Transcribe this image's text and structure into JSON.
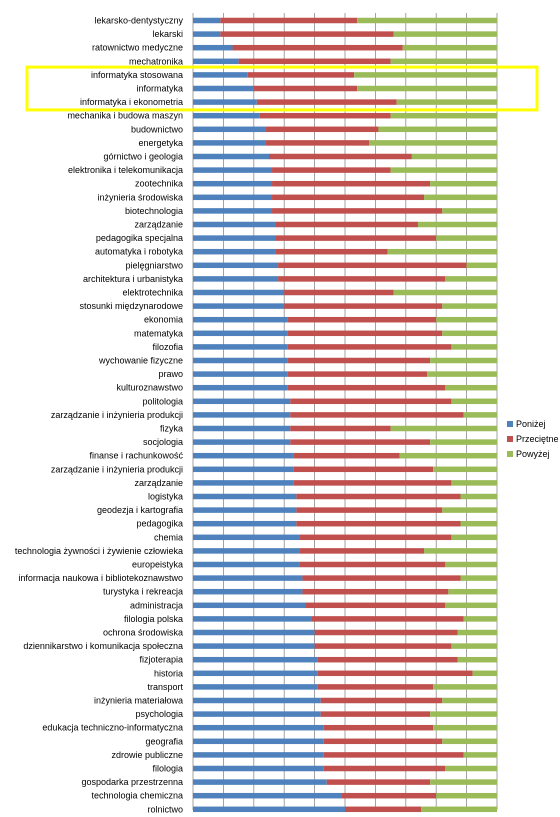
{
  "chart_data": {
    "type": "bar",
    "orientation": "horizontal",
    "stacked": "percent",
    "grid": true,
    "legend_position": "right",
    "xlim": [
      0,
      1
    ],
    "categories": [
      "lekarsko-dentystyczny",
      "lekarski",
      "ratownictwo medyczne",
      "mechatronika",
      "informatyka stosowana",
      "informatyka",
      "informatyka i ekonometria",
      "mechanika i budowa maszyn",
      "budownictwo",
      "energetyka",
      "górnictwo i geologia",
      "elektronika i telekomunikacja",
      "zootechnika",
      "inżynieria środowiska",
      "biotechnologia",
      "zarządzanie",
      "pedagogika specjalna",
      "automatyka i robotyka",
      "pielęgniarstwo",
      "architektura i urbanistyka",
      "elektrotechnika",
      "stosunki międzynarodowe",
      "ekonomia",
      "matematyka",
      "filozofia",
      "wychowanie fizyczne",
      "prawo",
      "kulturoznawstwo",
      "politologia",
      "zarządzanie i inżynieria produkcji",
      "fizyka",
      "socjologia",
      "finanse i rachunkowość",
      "zarządzanie i inżynieria produkcji",
      "zarządzanie",
      "logistyka",
      "geodezja i kartografia",
      "pedagogika",
      "chemia",
      "technologia żywności i żywienie człowieka",
      "europeistyka",
      "informacja naukowa i bibliotekoznawstwo",
      "turystyka i rekreacja",
      "administracja",
      "filologia polska",
      "ochrona środowiska",
      "dziennikarstwo i komunikacja społeczna",
      "fizjoterapia",
      "historia",
      "transport",
      "inżynieria materiałowa",
      "psychologia",
      "edukacja techniczno-informatyczna",
      "geografia",
      "zdrowie publiczne",
      "filologia",
      "gospodarka przestrzenna",
      "technologia chemiczna",
      "rolnictwo"
    ],
    "series": [
      {
        "name": "Poniżej",
        "color": "#4f81bd",
        "values": [
          0.09,
          0.09,
          0.13,
          0.15,
          0.18,
          0.2,
          0.21,
          0.22,
          0.24,
          0.24,
          0.25,
          0.26,
          0.26,
          0.26,
          0.26,
          0.27,
          0.27,
          0.27,
          0.28,
          0.28,
          0.3,
          0.3,
          0.31,
          0.31,
          0.31,
          0.31,
          0.31,
          0.31,
          0.32,
          0.32,
          0.32,
          0.32,
          0.33,
          0.33,
          0.33,
          0.34,
          0.34,
          0.34,
          0.35,
          0.35,
          0.35,
          0.36,
          0.36,
          0.37,
          0.39,
          0.4,
          0.4,
          0.41,
          0.41,
          0.41,
          0.42,
          0.42,
          0.43,
          0.43,
          0.43,
          0.43,
          0.44,
          0.49,
          0.5
        ]
      },
      {
        "name": "Przeciętne",
        "color": "#c0504d",
        "values": [
          0.45,
          0.57,
          0.56,
          0.5,
          0.35,
          0.34,
          0.46,
          0.43,
          0.37,
          0.34,
          0.47,
          0.39,
          0.52,
          0.5,
          0.56,
          0.47,
          0.53,
          0.37,
          0.62,
          0.55,
          0.36,
          0.52,
          0.49,
          0.51,
          0.54,
          0.47,
          0.46,
          0.52,
          0.53,
          0.57,
          0.33,
          0.46,
          0.35,
          0.46,
          0.52,
          0.54,
          0.48,
          0.54,
          0.5,
          0.41,
          0.48,
          0.52,
          0.48,
          0.46,
          0.5,
          0.47,
          0.45,
          0.46,
          0.51,
          0.38,
          0.4,
          0.36,
          0.36,
          0.39,
          0.46,
          0.4,
          0.34,
          0.31,
          0.25
        ]
      },
      {
        "name": "Powyżej",
        "color": "#9bbb59",
        "values": [
          0.46,
          0.34,
          0.31,
          0.35,
          0.47,
          0.46,
          0.33,
          0.35,
          0.39,
          0.42,
          0.28,
          0.35,
          0.22,
          0.24,
          0.18,
          0.26,
          0.2,
          0.36,
          0.1,
          0.17,
          0.34,
          0.18,
          0.2,
          0.18,
          0.15,
          0.22,
          0.23,
          0.17,
          0.15,
          0.11,
          0.35,
          0.22,
          0.32,
          0.21,
          0.15,
          0.12,
          0.18,
          0.12,
          0.15,
          0.24,
          0.17,
          0.12,
          0.16,
          0.17,
          0.11,
          0.13,
          0.15,
          0.13,
          0.08,
          0.21,
          0.18,
          0.22,
          0.21,
          0.18,
          0.11,
          0.17,
          0.22,
          0.2,
          0.25
        ]
      }
    ],
    "highlight": {
      "from": "informatyka stosowana",
      "to": "informatyka i ekonometria",
      "color": "#ffff00"
    }
  }
}
